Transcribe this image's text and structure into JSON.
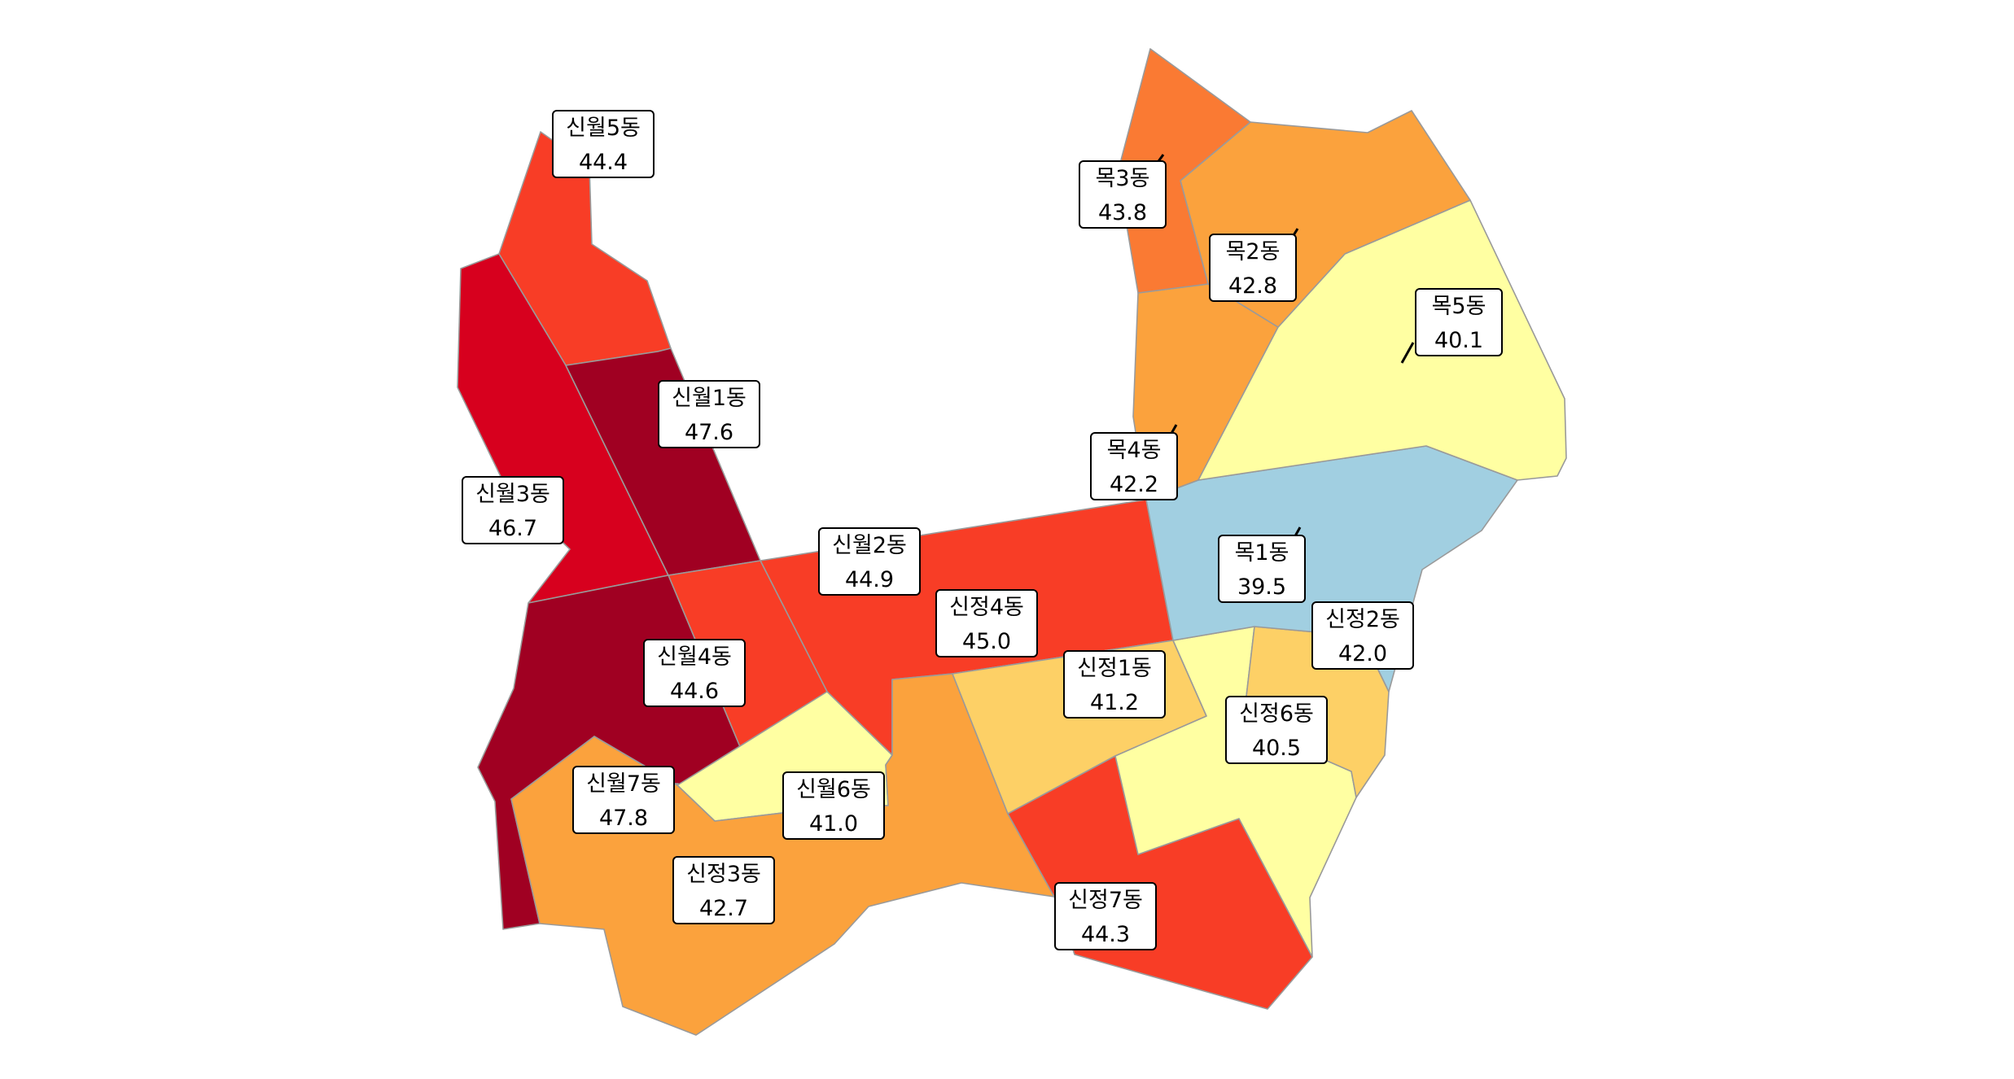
{
  "map": {
    "districts": [
      {
        "id": "sinwol5",
        "name": "신월5동",
        "value": "44.4",
        "fill": "#f83d26"
      },
      {
        "id": "sinwol1",
        "name": "신월1동",
        "value": "47.6",
        "fill": "#a00022"
      },
      {
        "id": "sinwol3",
        "name": "신월3동",
        "value": "46.7",
        "fill": "#d7001e"
      },
      {
        "id": "sinwol2",
        "name": "신월2동",
        "value": "44.9",
        "fill": "#f83d26"
      },
      {
        "id": "sinwol4",
        "name": "신월4동",
        "value": "44.6",
        "fill": "#f83d26"
      },
      {
        "id": "sinwol7",
        "name": "신월7동",
        "value": "47.8",
        "fill": "#a00022"
      },
      {
        "id": "sinwol6",
        "name": "신월6동",
        "value": "41.0",
        "fill": "#ffffa2"
      },
      {
        "id": "sinjeong3",
        "name": "신정3동",
        "value": "42.7",
        "fill": "#fba23d"
      },
      {
        "id": "sinjeong4",
        "name": "신정4동",
        "value": "45.0",
        "fill": "#f83d26"
      },
      {
        "id": "sinjeong1",
        "name": "신정1동",
        "value": "41.2",
        "fill": "#fdd066"
      },
      {
        "id": "sinjeong7",
        "name": "신정7동",
        "value": "44.3",
        "fill": "#f83d26"
      },
      {
        "id": "sinjeong6",
        "name": "신정6동",
        "value": "40.5",
        "fill": "#ffffa2"
      },
      {
        "id": "sinjeong2",
        "name": "신정2동",
        "value": "42.0",
        "fill": "#fdd066"
      },
      {
        "id": "mok1",
        "name": "목1동",
        "value": "39.5",
        "fill": "#a1cfe1"
      },
      {
        "id": "mok4",
        "name": "목4동",
        "value": "42.2",
        "fill": "#fba23d"
      },
      {
        "id": "mok5",
        "name": "목5동",
        "value": "40.1",
        "fill": "#ffffa2"
      },
      {
        "id": "mok2",
        "name": "목2동",
        "value": "42.8",
        "fill": "#fba23d"
      },
      {
        "id": "mok3",
        "name": "목3동",
        "value": "43.8",
        "fill": "#fa7a33"
      }
    ]
  }
}
